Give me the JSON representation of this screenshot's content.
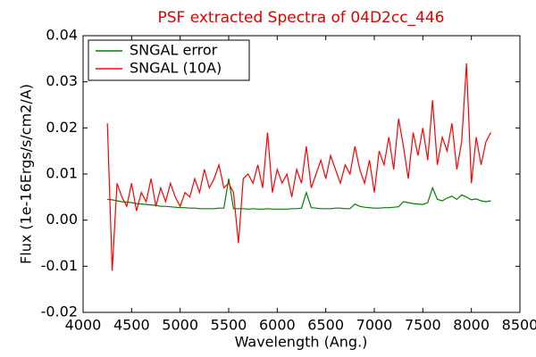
{
  "chart_data": {
    "type": "line",
    "title": "PSF extracted Spectra of 04D2cc_446",
    "xlabel": "Wavelength (Ang.)",
    "ylabel": "Flux (1e-16Ergs/s/cm2/A)",
    "x": [
      4250,
      4300,
      4350,
      4400,
      4450,
      4500,
      4550,
      4600,
      4650,
      4700,
      4750,
      4800,
      4850,
      4900,
      4950,
      5000,
      5050,
      5100,
      5150,
      5200,
      5250,
      5300,
      5350,
      5400,
      5450,
      5500,
      5550,
      5600,
      5650,
      5700,
      5750,
      5800,
      5850,
      5900,
      5950,
      6000,
      6050,
      6100,
      6150,
      6200,
      6250,
      6300,
      6350,
      6400,
      6450,
      6500,
      6550,
      6600,
      6650,
      6700,
      6750,
      6800,
      6850,
      6900,
      6950,
      7000,
      7050,
      7100,
      7150,
      7200,
      7250,
      7300,
      7350,
      7400,
      7450,
      7500,
      7550,
      7600,
      7650,
      7700,
      7750,
      7800,
      7850,
      7900,
      7950,
      8000,
      8050,
      8100,
      8150,
      8200
    ],
    "series": [
      {
        "name": "SNGAL error",
        "color": "#008000",
        "values": [
          0.0045,
          0.0044,
          0.0042,
          0.004,
          0.0039,
          0.0038,
          0.0036,
          0.0035,
          0.0034,
          0.0033,
          0.0032,
          0.003,
          0.003,
          0.0029,
          0.0028,
          0.0027,
          0.0027,
          0.0026,
          0.0026,
          0.0025,
          0.0025,
          0.0025,
          0.0025,
          0.0026,
          0.0026,
          0.009,
          0.0025,
          0.0025,
          0.0025,
          0.0024,
          0.0025,
          0.0024,
          0.0024,
          0.0025,
          0.0024,
          0.0024,
          0.0024,
          0.0024,
          0.0025,
          0.0025,
          0.0026,
          0.006,
          0.0027,
          0.0026,
          0.0025,
          0.0025,
          0.0025,
          0.0026,
          0.0026,
          0.0025,
          0.0025,
          0.0035,
          0.003,
          0.0028,
          0.0027,
          0.0026,
          0.0026,
          0.0027,
          0.0027,
          0.0028,
          0.0029,
          0.004,
          0.0038,
          0.0036,
          0.0035,
          0.0034,
          0.0038,
          0.007,
          0.0045,
          0.0042,
          0.0048,
          0.0052,
          0.0045,
          0.0055,
          0.005,
          0.0044,
          0.0046,
          0.0042,
          0.004,
          0.0042
        ]
      },
      {
        "name": "SNGAL (10A)",
        "color": "#ff0000",
        "values": [
          0.021,
          -0.011,
          0.008,
          0.005,
          0.003,
          0.008,
          0.002,
          0.006,
          0.004,
          0.009,
          0.003,
          0.007,
          0.004,
          0.008,
          0.005,
          0.003,
          0.006,
          0.005,
          0.009,
          0.006,
          0.011,
          0.007,
          0.009,
          0.012,
          0.007,
          0.008,
          0.006,
          -0.005,
          0.009,
          0.01,
          0.008,
          0.012,
          0.007,
          0.019,
          0.006,
          0.011,
          0.008,
          0.01,
          0.005,
          0.011,
          0.008,
          0.016,
          0.007,
          0.01,
          0.013,
          0.009,
          0.014,
          0.011,
          0.008,
          0.012,
          0.01,
          0.016,
          0.011,
          0.008,
          0.013,
          0.006,
          0.015,
          0.012,
          0.018,
          0.011,
          0.022,
          0.016,
          0.009,
          0.019,
          0.014,
          0.02,
          0.013,
          0.026,
          0.012,
          0.018,
          0.015,
          0.021,
          0.011,
          0.017,
          0.034,
          0.008,
          0.018,
          0.012,
          0.017,
          0.019
        ]
      }
    ],
    "xlim": [
      4000,
      8500
    ],
    "xticks": [
      4000,
      4500,
      5000,
      5500,
      6000,
      6500,
      7000,
      7500,
      8000,
      8500
    ],
    "ylim": [
      -0.02,
      0.04
    ],
    "yticks": [
      -0.02,
      -0.01,
      {
        "value": 0,
        "label": "0.00"
      },
      0.01,
      0.02,
      0.03,
      0.04
    ],
    "legend": "upper left"
  }
}
